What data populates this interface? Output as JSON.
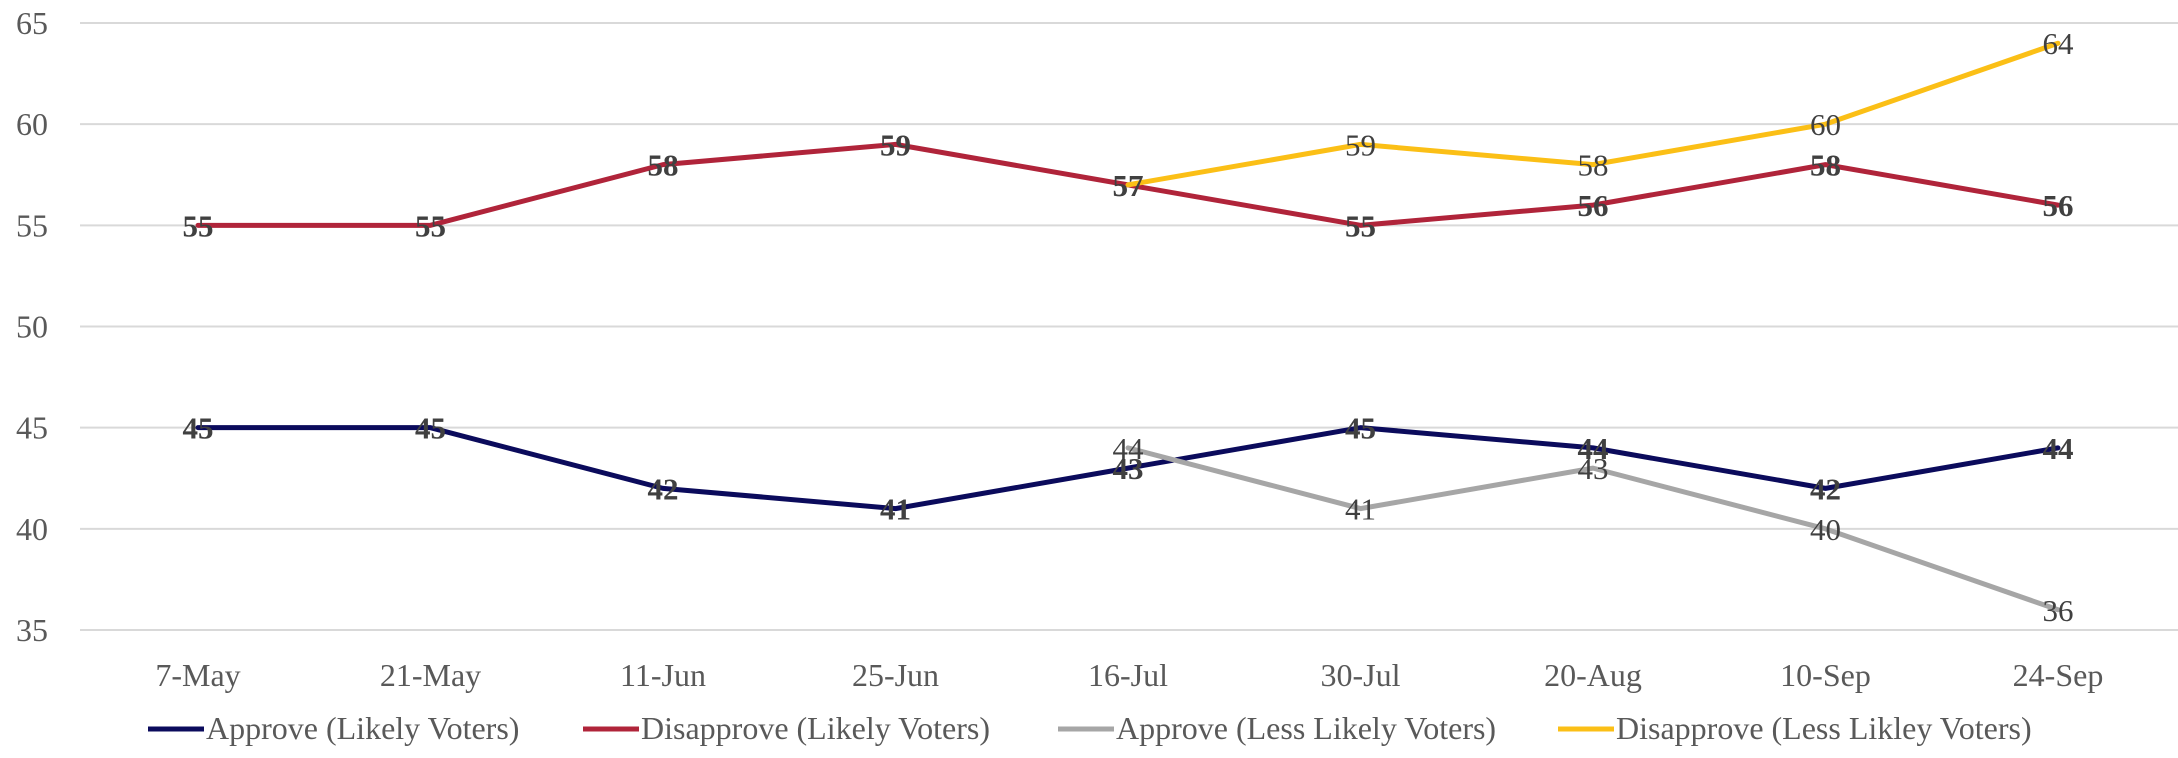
{
  "chart_data": {
    "type": "line",
    "title": "",
    "xlabel": "",
    "ylabel": "",
    "ylim": [
      35,
      65
    ],
    "yticks": [
      35,
      40,
      45,
      50,
      55,
      60,
      65
    ],
    "grid": true,
    "legend_position": "bottom",
    "categories": [
      "7-May",
      "21-May",
      "11-Jun",
      "25-Jun",
      "16-Jul",
      "30-Jul",
      "20-Aug",
      "10-Sep",
      "24-Sep"
    ],
    "series": [
      {
        "name": "Approve (Likely Voters)",
        "color": "#0b0b5c",
        "bold_labels": true,
        "values": [
          45,
          45,
          42,
          41,
          43,
          45,
          44,
          42,
          44
        ]
      },
      {
        "name": "Disapprove (Likely Voters)",
        "color": "#b0243a",
        "bold_labels": true,
        "values": [
          55,
          55,
          58,
          59,
          57,
          55,
          56,
          58,
          56
        ]
      },
      {
        "name": "Approve (Less Likely Voters)",
        "color": "#a6a6a6",
        "bold_labels": false,
        "values": [
          null,
          null,
          null,
          null,
          44,
          41,
          43,
          40,
          36
        ]
      },
      {
        "name": "Disapprove (Less Likley Voters)",
        "color": "#fbbf16",
        "bold_labels": false,
        "values": [
          null,
          null,
          null,
          null,
          57,
          59,
          58,
          60,
          64
        ]
      }
    ]
  }
}
